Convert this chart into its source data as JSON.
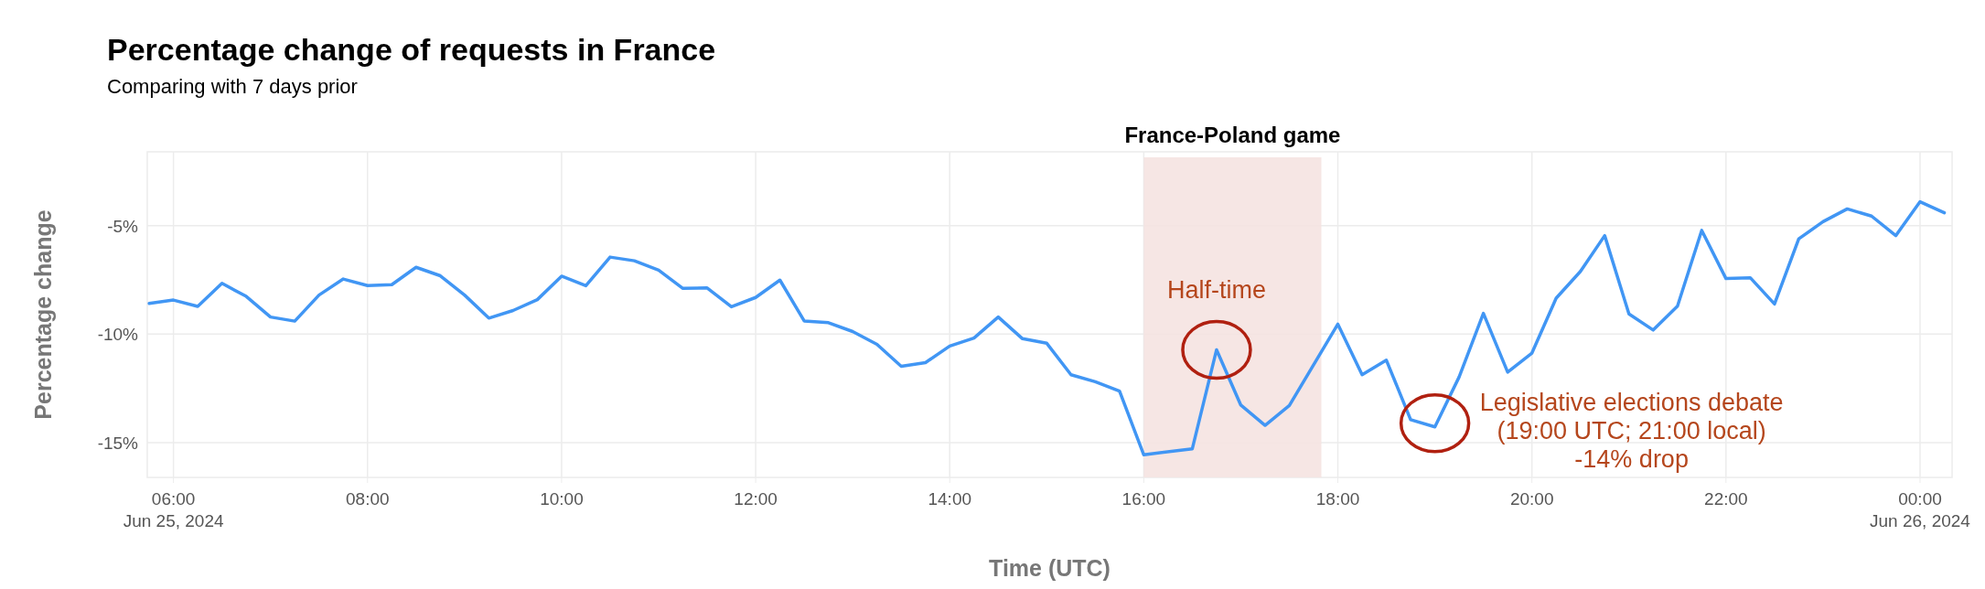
{
  "chart_data": {
    "type": "line",
    "title": "Percentage change of requests in France",
    "subtitle": "Comparing with 7 days prior",
    "xlabel": "Time (UTC)",
    "ylabel": "Percentage change",
    "series": [
      {
        "color": "#4196f4",
        "x": [
          5.75,
          6,
          6.25,
          6.5,
          6.75,
          7,
          7.25,
          7.5,
          7.75,
          8,
          8.25,
          8.5,
          8.75,
          9,
          9.25,
          9.5,
          9.75,
          10,
          10.25,
          10.5,
          10.75,
          11,
          11.25,
          11.5,
          11.75,
          12,
          12.25,
          12.5,
          12.75,
          13,
          13.25,
          13.5,
          13.75,
          14,
          14.25,
          14.5,
          14.75,
          15,
          15.25,
          15.5,
          15.75,
          16,
          16.5,
          16.75,
          17,
          17.25,
          17.5,
          18,
          18.25,
          18.5,
          18.75,
          19,
          19.25,
          19.5,
          19.75,
          20,
          20.25,
          20.5,
          20.75,
          21,
          21.25,
          21.5,
          21.75,
          22,
          22.25,
          22.5,
          22.75,
          23,
          23.25,
          23.5,
          23.75,
          24,
          24.25
        ],
        "values": [
          -8.58,
          -8.43,
          -8.72,
          -7.66,
          -8.26,
          -9.21,
          -9.4,
          -8.2,
          -7.46,
          -7.76,
          -7.72,
          -6.92,
          -7.31,
          -8.2,
          -9.26,
          -8.91,
          -8.41,
          -7.33,
          -7.77,
          -6.45,
          -6.62,
          -7.05,
          -7.89,
          -7.87,
          -8.74,
          -8.31,
          -7.51,
          -9.39,
          -9.47,
          -9.88,
          -10.47,
          -11.48,
          -11.31,
          -10.55,
          -10.18,
          -9.21,
          -10.21,
          -10.42,
          -11.87,
          -12.19,
          -12.62,
          -15.56,
          -15.28,
          -10.72,
          -13.27,
          -14.2,
          -13.29,
          -9.54,
          -11.87,
          -11.2,
          -13.94,
          -14.27,
          -11.97,
          -9.04,
          -11.75,
          -10.87,
          -8.34,
          -7.11,
          -5.46,
          -9.07,
          -9.81,
          -8.71,
          -5.22,
          -7.44,
          -7.4,
          -8.61,
          -5.61,
          -4.82,
          -4.23,
          -4.56,
          -5.46,
          -3.9,
          -4.41
        ]
      }
    ],
    "xlim": [
      5.73,
      24.33
    ],
    "ylim": [
      -16.6,
      -1.6
    ],
    "xticks": [
      {
        "value": 6,
        "label": "06:00\nJun 25, 2024"
      },
      {
        "value": 8,
        "label": "08:00"
      },
      {
        "value": 10,
        "label": "10:00"
      },
      {
        "value": 12,
        "label": "12:00"
      },
      {
        "value": 14,
        "label": "14:00"
      },
      {
        "value": 16,
        "label": "16:00"
      },
      {
        "value": 18,
        "label": "18:00"
      },
      {
        "value": 20,
        "label": "20:00"
      },
      {
        "value": 22,
        "label": "22:00"
      },
      {
        "value": 24,
        "label": "00:00\nJun 26, 2024"
      }
    ],
    "yticks": [
      {
        "value": -15,
        "label": "-15%"
      },
      {
        "value": -10,
        "label": "-10%"
      },
      {
        "value": -5,
        "label": "-5%"
      }
    ],
    "grid": true,
    "marker": "none",
    "line_style": "solid",
    "bands": [
      {
        "axis": "x",
        "from": 16,
        "to": 17.83,
        "label": "France-Poland game",
        "color": "#f5e3e1"
      }
    ],
    "annotations": [
      {
        "text": "Half-time",
        "x": 16.75,
        "y": -10.72
      },
      {
        "text": "Legislative elections debate\n(19:00 UTC; 21:00 local)\n-14% drop",
        "x": 19,
        "y": -14.1
      }
    ]
  }
}
